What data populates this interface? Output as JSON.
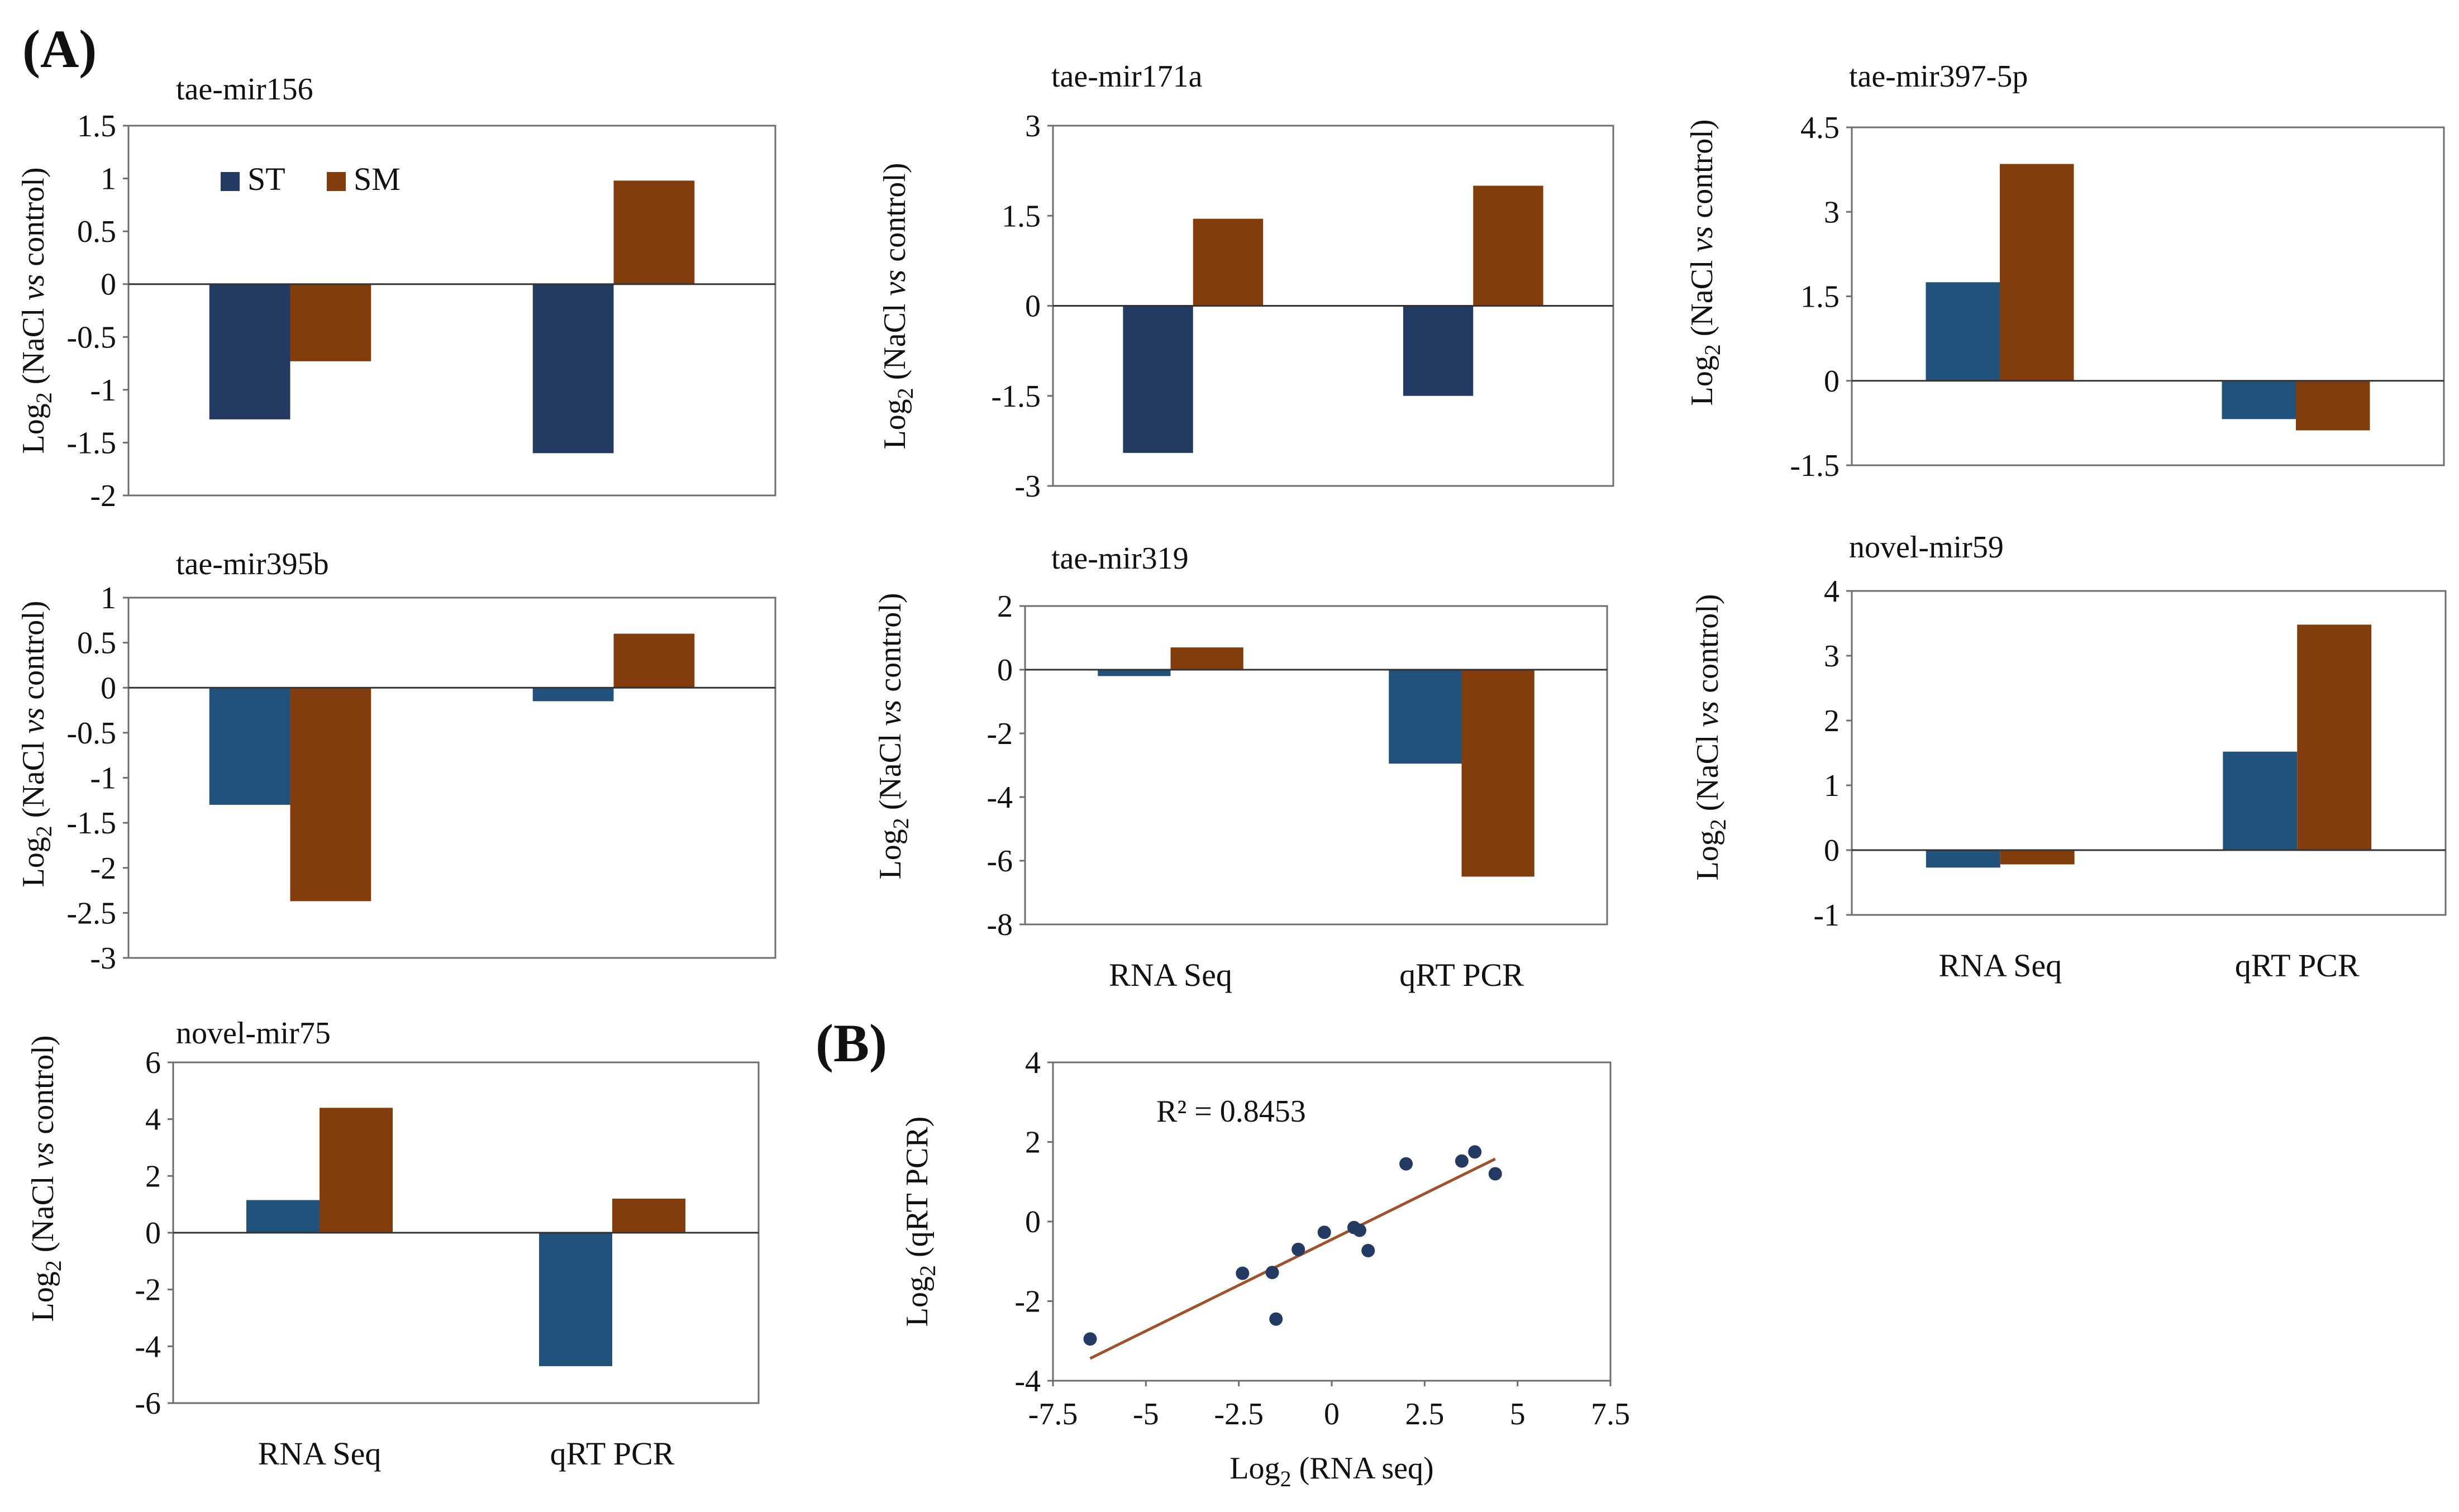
{
  "panel_labels": {
    "a": "(A)",
    "b": "(B)"
  },
  "legend": [
    {
      "name": "ST",
      "color": "#233a63"
    },
    {
      "name": "SM",
      "color": "#833c0b"
    }
  ],
  "y_axis_label": {
    "base": "Log",
    "sub": "2",
    "rest_pre": " (NaCl ",
    "italic": "vs",
    "rest_post": " control)"
  },
  "categories": [
    "RNA Seq",
    "qRT PCR"
  ],
  "chart_data": [
    {
      "type": "bar",
      "title": "tae-mir156",
      "categories": [
        "RNA Seq",
        "qRT PCR"
      ],
      "series": [
        {
          "name": "ST",
          "values": [
            -1.28,
            -1.6
          ],
          "color": "#233a63"
        },
        {
          "name": "SM",
          "values": [
            -0.73,
            0.98
          ],
          "color": "#833c0b"
        }
      ],
      "ylim": [
        -2,
        1.5
      ],
      "yticks": [
        "1.5",
        "1",
        "0.5",
        "0",
        "-0.5",
        "-1",
        "-1.5",
        "-2"
      ],
      "ytick_values": [
        1.5,
        1,
        0.5,
        0,
        -0.5,
        -1,
        -1.5,
        -2
      ],
      "show_categories": false,
      "legend": true
    },
    {
      "type": "bar",
      "title": "tae-mir171a",
      "categories": [
        "RNA Seq",
        "qRT PCR"
      ],
      "series": [
        {
          "name": "ST",
          "values": [
            -2.45,
            -1.5
          ],
          "color": "#233a63"
        },
        {
          "name": "SM",
          "values": [
            1.45,
            2.0
          ],
          "color": "#833c0b"
        }
      ],
      "ylim": [
        -3,
        3
      ],
      "yticks": [
        "3",
        "1.5",
        "0",
        "-1.5",
        "-3"
      ],
      "ytick_values": [
        3,
        1.5,
        0,
        -1.5,
        -3
      ],
      "show_categories": false,
      "legend": false
    },
    {
      "type": "bar",
      "title": "tae-mir397-5p",
      "categories": [
        "RNA Seq",
        "qRT PCR"
      ],
      "series": [
        {
          "name": "ST",
          "values": [
            1.75,
            -0.68
          ],
          "color": "#21527c"
        },
        {
          "name": "SM",
          "values": [
            3.85,
            -0.88
          ],
          "color": "#833c0b"
        }
      ],
      "ylim": [
        -1.5,
        4.5
      ],
      "yticks": [
        "4.5",
        "3",
        "1.5",
        "0",
        "-1.5"
      ],
      "ytick_values": [
        4.5,
        3,
        1.5,
        0,
        -1.5
      ],
      "show_categories": false,
      "legend": false
    },
    {
      "type": "bar",
      "title": "tae-mir395b",
      "categories": [
        "RNA Seq",
        "qRT PCR"
      ],
      "series": [
        {
          "name": "ST",
          "values": [
            -1.3,
            -0.15
          ],
          "color": "#21527c"
        },
        {
          "name": "SM",
          "values": [
            -2.37,
            0.6
          ],
          "color": "#833c0b"
        }
      ],
      "ylim": [
        -3,
        1
      ],
      "yticks": [
        "1",
        "0.5",
        "0",
        "-0.5",
        "-1",
        "-1.5",
        "-2",
        "-2.5",
        "-3"
      ],
      "ytick_values": [
        1,
        0.5,
        0,
        -0.5,
        -1,
        -1.5,
        -2,
        -2.5,
        -3
      ],
      "show_categories": false,
      "legend": false
    },
    {
      "type": "bar",
      "title": "tae-mir319",
      "categories": [
        "RNA Seq",
        "qRT PCR"
      ],
      "series": [
        {
          "name": "ST",
          "values": [
            -0.2,
            -2.95
          ],
          "color": "#21527c"
        },
        {
          "name": "SM",
          "values": [
            0.7,
            -6.5
          ],
          "color": "#833c0b"
        }
      ],
      "ylim": [
        -8,
        2
      ],
      "yticks": [
        "2",
        "0",
        "-2",
        "-4",
        "-6",
        "-8"
      ],
      "ytick_values": [
        2,
        0,
        -2,
        -4,
        -6,
        -8
      ],
      "show_categories": true,
      "legend": false
    },
    {
      "type": "bar",
      "title": "novel-mir59",
      "categories": [
        "RNA Seq",
        "qRT PCR"
      ],
      "series": [
        {
          "name": "ST",
          "values": [
            -0.27,
            1.52
          ],
          "color": "#21527c"
        },
        {
          "name": "SM",
          "values": [
            -0.22,
            3.48
          ],
          "color": "#833c0b"
        }
      ],
      "ylim": [
        -1,
        4
      ],
      "yticks": [
        "4",
        "3",
        "2",
        "1",
        "0",
        "-1"
      ],
      "ytick_values": [
        4,
        3,
        2,
        1,
        0,
        -1
      ],
      "show_categories": true,
      "legend": false
    },
    {
      "type": "bar",
      "title": "novel-mir75",
      "categories": [
        "RNA Seq",
        "qRT PCR"
      ],
      "series": [
        {
          "name": "ST",
          "values": [
            1.15,
            -4.7
          ],
          "color": "#21527c"
        },
        {
          "name": "SM",
          "values": [
            4.4,
            1.2
          ],
          "color": "#833c0b"
        }
      ],
      "ylim": [
        -6,
        6
      ],
      "yticks": [
        "6",
        "4",
        "2",
        "0",
        "-2",
        "-4",
        "-6"
      ],
      "ytick_values": [
        6,
        4,
        2,
        0,
        -2,
        -4,
        -6
      ],
      "show_categories": true,
      "legend": false
    },
    {
      "type": "scatter",
      "xlabel_base": "Log",
      "xlabel_sub": "2",
      "xlabel_rest": " (RNA seq)",
      "ylabel_base": "Log",
      "ylabel_sub": "2",
      "ylabel_rest": " (qRT PCR)",
      "annotation": "R² = 0.8453",
      "xlim": [
        -7.5,
        7.5
      ],
      "ylim": [
        -4,
        4
      ],
      "xticks": [
        "-7.5",
        "-5",
        "-2.5",
        "0",
        "2.5",
        "5",
        "7.5"
      ],
      "xtick_values": [
        -7.5,
        -5,
        -2.5,
        0,
        2.5,
        5,
        7.5
      ],
      "yticks": [
        "4",
        "2",
        "0",
        "-2",
        "-4"
      ],
      "ytick_values": [
        4,
        2,
        0,
        -2,
        -4
      ],
      "points": [
        {
          "x": -6.5,
          "y": -2.95
        },
        {
          "x": -2.4,
          "y": -1.3
        },
        {
          "x": -1.6,
          "y": -1.28
        },
        {
          "x": -1.5,
          "y": -2.45
        },
        {
          "x": -0.9,
          "y": -0.7
        },
        {
          "x": -0.2,
          "y": -0.27
        },
        {
          "x": 0.6,
          "y": -0.15
        },
        {
          "x": 0.75,
          "y": -0.22
        },
        {
          "x": 0.98,
          "y": -0.73
        },
        {
          "x": 2.0,
          "y": 1.45
        },
        {
          "x": 3.5,
          "y": 1.52
        },
        {
          "x": 3.85,
          "y": 1.75
        },
        {
          "x": 4.4,
          "y": 1.2
        }
      ],
      "trendline": {
        "slope": 0.46,
        "intercept": -0.45,
        "x_range": [
          -6.5,
          4.4
        ],
        "color": "#a0522d"
      },
      "point_color": "#233a63"
    }
  ]
}
